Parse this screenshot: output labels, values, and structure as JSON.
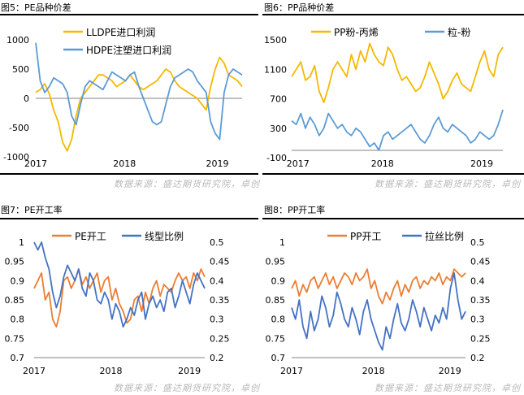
{
  "source_text": "数据来源：盛达期货研究院，卓创",
  "charts": [
    {
      "caption": "图5：PE品种价差",
      "chart_data": {
        "type": "line",
        "title": "",
        "y_ticks": [
          1000,
          500,
          0,
          -500,
          -1000
        ],
        "ylim": [
          -1000,
          1000
        ],
        "x_ticks": [
          "2017",
          "2018",
          "2019"
        ],
        "legend_position": "top-center",
        "series": [
          {
            "name": "LLDPE进口利润",
            "color": "#f5b800",
            "axis": "left",
            "values": [
              100,
              150,
              250,
              80,
              -200,
              -400,
              -750,
              -900,
              -700,
              -300,
              0,
              100,
              200,
              300,
              400,
              400,
              350,
              300,
              200,
              250,
              300,
              400,
              300,
              200,
              150,
              200,
              250,
              300,
              400,
              500,
              450,
              300,
              200,
              150,
              100,
              50,
              0,
              -100,
              -200,
              200,
              500,
              700,
              600,
              400,
              350,
              300,
              200
            ]
          },
          {
            "name": "HDPE注塑进口利润",
            "color": "#5b9bd5",
            "axis": "left",
            "values": [
              950,
              300,
              100,
              200,
              350,
              300,
              250,
              100,
              -300,
              -450,
              -100,
              200,
              300,
              250,
              200,
              150,
              300,
              450,
              400,
              350,
              300,
              400,
              450,
              200,
              0,
              -200,
              -400,
              -450,
              -400,
              -100,
              200,
              350,
              400,
              450,
              500,
              450,
              300,
              200,
              100,
              -400,
              -600,
              -700,
              100,
              400,
              500,
              450,
              400
            ]
          }
        ]
      }
    },
    {
      "caption": "图6：PP品种价差",
      "chart_data": {
        "type": "line",
        "title": "",
        "y_ticks": [
          1500,
          1100,
          700,
          300,
          -100
        ],
        "ylim": [
          -100,
          1500
        ],
        "x_ticks": [
          "2017",
          "2018",
          "2019"
        ],
        "legend_position": "top-center",
        "series": [
          {
            "name": "PP粉-丙烯",
            "color": "#f5b800",
            "axis": "left",
            "values": [
              1000,
              1100,
              1200,
              950,
              1000,
              1150,
              800,
              650,
              850,
              1100,
              1200,
              1100,
              1000,
              1300,
              1100,
              1350,
              1200,
              1450,
              1300,
              1200,
              1150,
              1400,
              1300,
              1100,
              950,
              1000,
              900,
              800,
              850,
              1000,
              1200,
              1050,
              900,
              700,
              800,
              950,
              1050,
              900,
              850,
              800,
              1000,
              1200,
              1350,
              1100,
              1000,
              1300,
              1400
            ]
          },
          {
            "name": "粒-粉",
            "color": "#5b9bd5",
            "axis": "left",
            "values": [
              400,
              350,
              500,
              300,
              450,
              350,
              200,
              300,
              500,
              400,
              300,
              350,
              250,
              200,
              300,
              250,
              150,
              50,
              100,
              0,
              200,
              250,
              150,
              200,
              250,
              300,
              350,
              250,
              150,
              100,
              200,
              350,
              450,
              300,
              250,
              350,
              300,
              250,
              200,
              100,
              150,
              250,
              200,
              150,
              200,
              350,
              550
            ]
          }
        ]
      }
    },
    {
      "caption": "图7：PE开工率",
      "chart_data": {
        "type": "line",
        "title": "",
        "y_ticks": [
          1,
          0.95,
          0.9,
          0.85,
          0.8,
          0.75,
          0.7
        ],
        "ylim": [
          0.7,
          1
        ],
        "y2_ticks": [
          0.5,
          0.45,
          0.4,
          0.35,
          0.3,
          0.25,
          0.2
        ],
        "y2lim": [
          0.2,
          0.5
        ],
        "x_ticks": [
          "2017",
          "2018",
          "2019"
        ],
        "legend_position": "top-center",
        "series": [
          {
            "name": "PE开工",
            "color": "#ed7d31",
            "axis": "left",
            "values": [
              0.88,
              0.9,
              0.92,
              0.85,
              0.87,
              0.8,
              0.78,
              0.82,
              0.9,
              0.91,
              0.88,
              0.9,
              0.93,
              0.89,
              0.91,
              0.88,
              0.9,
              0.92,
              0.87,
              0.9,
              0.91,
              0.85,
              0.88,
              0.84,
              0.82,
              0.79,
              0.8,
              0.85,
              0.86,
              0.82,
              0.87,
              0.84,
              0.88,
              0.9,
              0.86,
              0.89,
              0.88,
              0.87,
              0.9,
              0.92,
              0.9,
              0.91,
              0.88,
              0.92,
              0.9,
              0.93,
              0.91
            ]
          },
          {
            "name": "线型比例",
            "color": "#4472c4",
            "axis": "right",
            "values": [
              0.5,
              0.48,
              0.5,
              0.46,
              0.43,
              0.37,
              0.33,
              0.36,
              0.41,
              0.44,
              0.42,
              0.4,
              0.43,
              0.38,
              0.36,
              0.42,
              0.4,
              0.35,
              0.34,
              0.37,
              0.35,
              0.3,
              0.34,
              0.32,
              0.28,
              0.3,
              0.33,
              0.31,
              0.35,
              0.37,
              0.3,
              0.34,
              0.36,
              0.33,
              0.35,
              0.32,
              0.37,
              0.38,
              0.33,
              0.36,
              0.4,
              0.37,
              0.34,
              0.39,
              0.42,
              0.4,
              0.38
            ]
          }
        ]
      }
    },
    {
      "caption": "图8：PP开工率",
      "chart_data": {
        "type": "line",
        "title": "",
        "y_ticks": [
          1,
          0.95,
          0.9,
          0.85,
          0.8,
          0.75,
          0.7
        ],
        "ylim": [
          0.7,
          1
        ],
        "y2_ticks": [
          0.5,
          0.45,
          0.4,
          0.35,
          0.3,
          0.25,
          0.2
        ],
        "y2lim": [
          0.2,
          0.5
        ],
        "x_ticks": [
          "2017",
          "2018",
          "2019"
        ],
        "legend_position": "top-center",
        "series": [
          {
            "name": "PP开工",
            "color": "#ed7d31",
            "axis": "left",
            "values": [
              0.88,
              0.9,
              0.86,
              0.89,
              0.87,
              0.9,
              0.91,
              0.88,
              0.9,
              0.92,
              0.89,
              0.91,
              0.88,
              0.9,
              0.92,
              0.91,
              0.89,
              0.92,
              0.9,
              0.91,
              0.93,
              0.88,
              0.9,
              0.86,
              0.84,
              0.87,
              0.85,
              0.88,
              0.9,
              0.86,
              0.89,
              0.87,
              0.9,
              0.91,
              0.88,
              0.9,
              0.89,
              0.91,
              0.9,
              0.92,
              0.89,
              0.91,
              0.9,
              0.93,
              0.92,
              0.91,
              0.92
            ]
          },
          {
            "name": "拉丝比例",
            "color": "#4472c4",
            "axis": "right",
            "values": [
              0.33,
              0.3,
              0.35,
              0.28,
              0.25,
              0.32,
              0.27,
              0.3,
              0.36,
              0.33,
              0.28,
              0.31,
              0.37,
              0.34,
              0.3,
              0.28,
              0.33,
              0.3,
              0.26,
              0.32,
              0.35,
              0.3,
              0.27,
              0.24,
              0.22,
              0.28,
              0.25,
              0.3,
              0.34,
              0.29,
              0.27,
              0.3,
              0.35,
              0.32,
              0.28,
              0.33,
              0.3,
              0.27,
              0.31,
              0.29,
              0.33,
              0.3,
              0.38,
              0.42,
              0.35,
              0.3,
              0.32
            ]
          }
        ]
      }
    }
  ]
}
